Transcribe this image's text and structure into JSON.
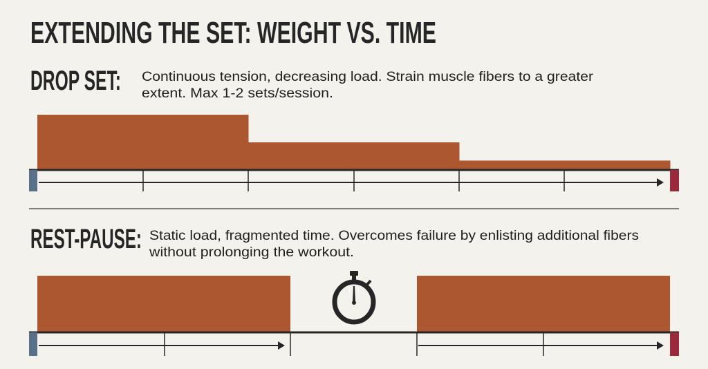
{
  "title": "EXTENDING THE SET: WEIGHT VS. TIME",
  "drop_set": {
    "label": "DROP SET:",
    "description_line1": "Continuous tension, decreasing load. Strain muscle fibers to a greater",
    "description_line2": "extent. Max 1-2 sets/session.",
    "load_levels": [
      1.0,
      0.5,
      0.17
    ]
  },
  "rest_pause": {
    "label": "REST-PAUSE:",
    "description_line1": "Static load, fragmented time. Overcomes failure by enlisting additional fibers",
    "description_line2": "without prolonging the workout.",
    "rest_icon": "stopwatch-icon"
  },
  "colors": {
    "background": "#f3f2ec",
    "load_bar": "#ad5730",
    "start_marker": "#5a7088",
    "end_marker": "#9b2a3a",
    "axis": "#262626"
  }
}
